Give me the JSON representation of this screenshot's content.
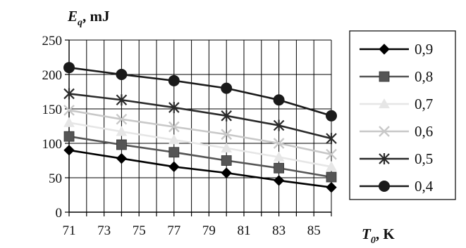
{
  "chart_data": {
    "type": "line",
    "x": [
      71,
      74,
      77,
      80,
      83,
      86
    ],
    "x_ticks": [
      71,
      73,
      75,
      77,
      79,
      81,
      83,
      85
    ],
    "xlim": [
      71,
      86
    ],
    "y_ticks": [
      0,
      50,
      100,
      150,
      200,
      250
    ],
    "ylim": [
      0,
      250
    ],
    "ylabel": {
      "main": "E",
      "sub": "q",
      "unit": ", mJ"
    },
    "xlabel": {
      "main": "T",
      "sub": "0",
      "unit": ", K"
    },
    "grid": true,
    "legend_position": "right",
    "series": [
      {
        "name": "0,9",
        "marker": "diamond",
        "color": "#000000",
        "values": [
          90,
          78,
          66,
          57,
          46,
          36
        ]
      },
      {
        "name": "0,8",
        "marker": "square",
        "color": "#555555",
        "values": [
          110,
          98,
          87,
          75,
          64,
          51
        ]
      },
      {
        "name": "0,7",
        "marker": "triangle",
        "color": "#e6e6e6",
        "values": [
          130,
          117,
          105,
          93,
          80,
          66
        ]
      },
      {
        "name": "0,6",
        "marker": "cross",
        "color": "#c8c8c8",
        "values": [
          148,
          135,
          124,
          113,
          100,
          84
        ]
      },
      {
        "name": "0,5",
        "marker": "star",
        "color": "#2a2a2a",
        "values": [
          172,
          163,
          152,
          140,
          126,
          107
        ]
      },
      {
        "name": "0,4",
        "marker": "circle",
        "color": "#1a1a1a",
        "values": [
          210,
          200,
          191,
          180,
          163,
          140
        ]
      }
    ]
  }
}
